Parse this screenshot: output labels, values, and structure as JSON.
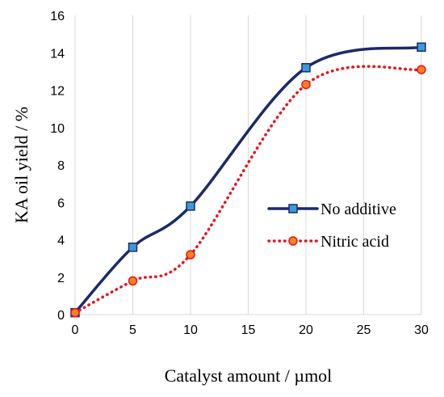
{
  "chart_data": {
    "type": "line",
    "title": "",
    "xlabel": "Catalyst amount / µmol",
    "ylabel": "KA oil yield / %",
    "xlim": [
      0,
      30
    ],
    "ylim": [
      0,
      16
    ],
    "xticks": [
      0,
      5,
      10,
      15,
      20,
      25,
      30
    ],
    "yticks": [
      0,
      2,
      4,
      6,
      8,
      10,
      12,
      14,
      16
    ],
    "grid": {
      "vertical": true,
      "horizontal": false
    },
    "legend_position": "right-middle",
    "series": [
      {
        "name": "No additive",
        "color": "#1b2a6b",
        "marker_color": "#3b9bd6",
        "line_style": "solid",
        "marker": "square",
        "x": [
          0,
          5,
          10,
          20,
          30
        ],
        "y": [
          0.1,
          3.6,
          5.8,
          13.2,
          14.3
        ]
      },
      {
        "name": "Nitric acid",
        "color": "#e8141b",
        "marker_color": "#f58220",
        "line_style": "dotted",
        "marker": "circle",
        "x": [
          0,
          5,
          10,
          20,
          30
        ],
        "y": [
          0.1,
          1.8,
          3.2,
          12.3,
          13.1
        ]
      }
    ]
  }
}
